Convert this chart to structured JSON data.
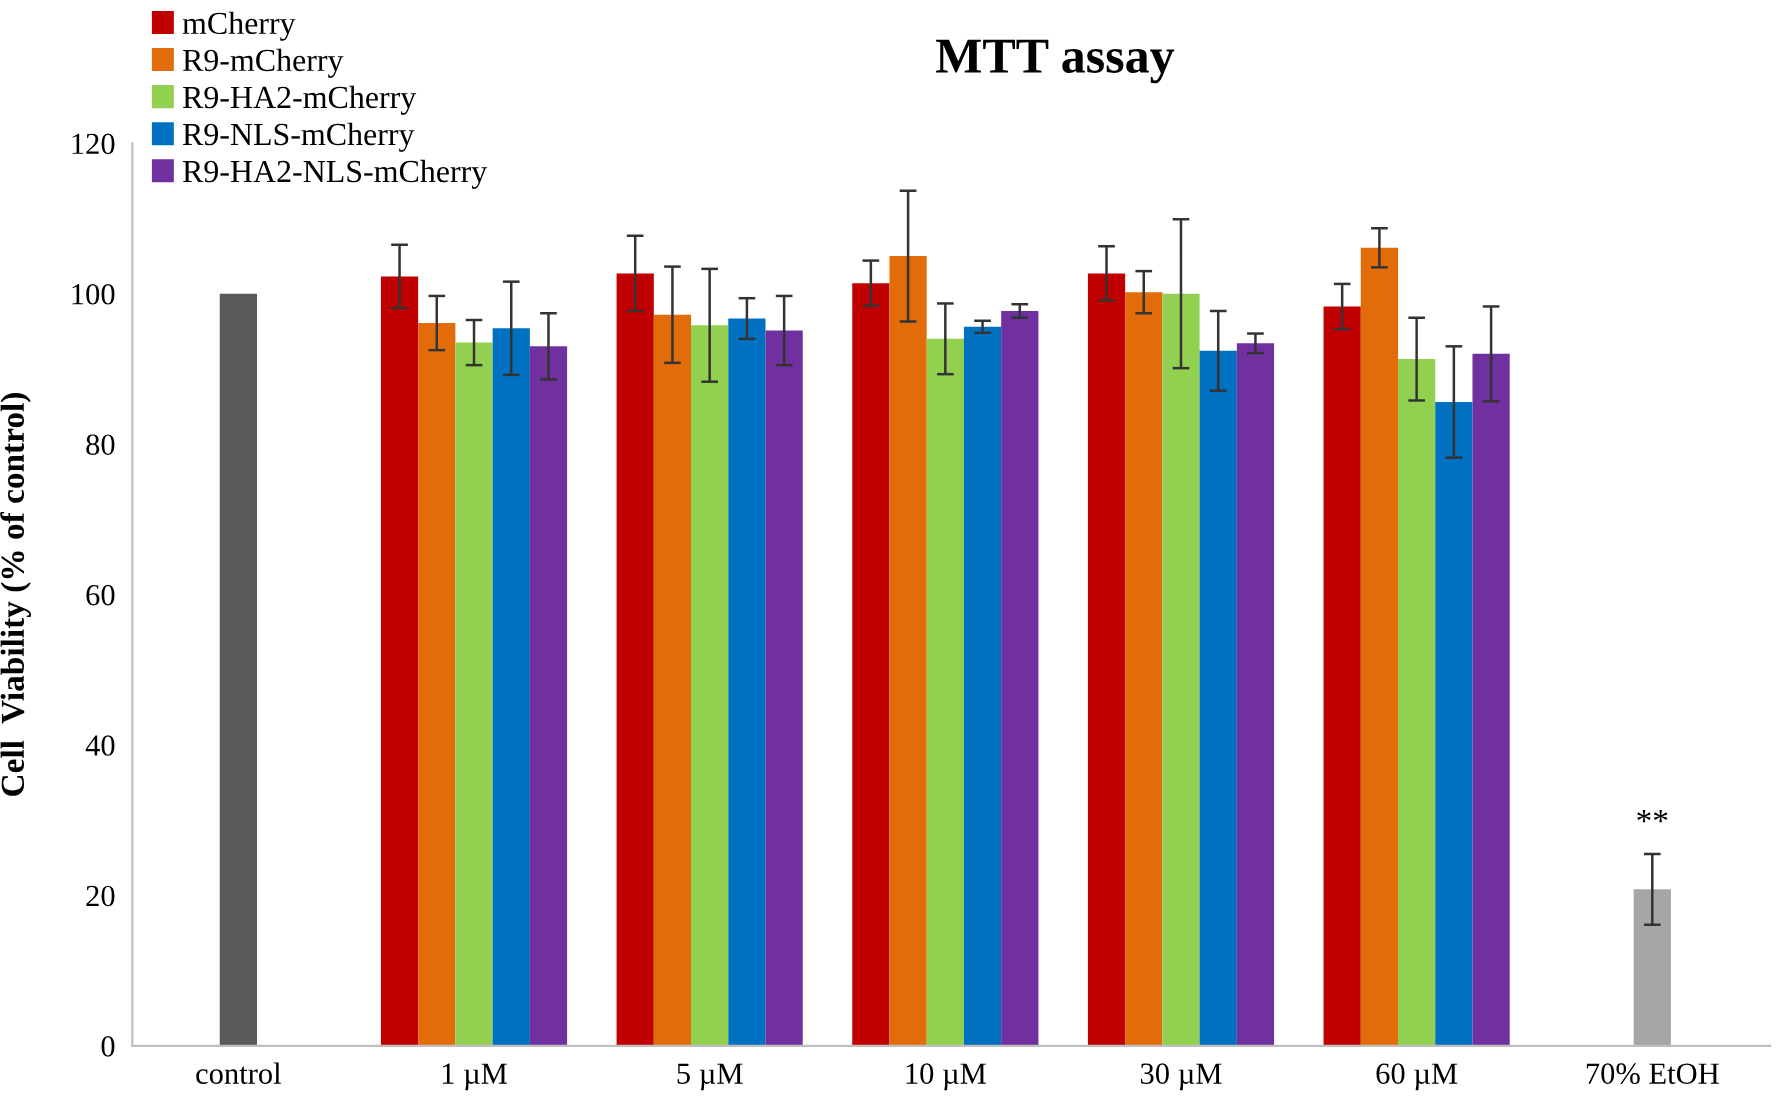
{
  "chart_data": {
    "type": "bar",
    "title": "MTT assay",
    "ylabel": "Cell  Viability (% of control)",
    "categories": [
      "control",
      "1 µM",
      "5 µM",
      "10 µM",
      "30 µM",
      "60 µM",
      "70% EtOH"
    ],
    "series": [
      {
        "color": "#595959",
        "values": [
          100,
          null,
          null,
          null,
          null,
          null,
          null
        ]
      },
      {
        "name": "mCherry",
        "color": "#c00000",
        "values": [
          null,
          102.3,
          102.7,
          101.4,
          102.7,
          98.3,
          null
        ],
        "errors": [
          null,
          4.2,
          5,
          3,
          3.6,
          3,
          null
        ]
      },
      {
        "name": "R9-mCherry",
        "color": "#e36c0a",
        "values": [
          null,
          96.1,
          97.2,
          105,
          100.2,
          106.1,
          null
        ],
        "errors": [
          null,
          3.6,
          6.4,
          8.7,
          2.8,
          2.6,
          null
        ]
      },
      {
        "name": "R9-HA2-mCherry",
        "color": "#92d050",
        "values": [
          null,
          93.5,
          95.8,
          94,
          100,
          91.3,
          null
        ],
        "errors": [
          null,
          3,
          7.5,
          4.7,
          9.9,
          5.5,
          null
        ]
      },
      {
        "name": "R9-NLS-mCherry",
        "color": "#0070c0",
        "values": [
          null,
          95.4,
          96.7,
          95.6,
          92.4,
          85.6,
          null
        ],
        "errors": [
          null,
          6.2,
          2.7,
          0.8,
          5.3,
          7.4,
          null
        ]
      },
      {
        "name": "R9-HA2-NLS-mCherry",
        "color": "#7030a0",
        "values": [
          null,
          93,
          95.1,
          97.7,
          93.4,
          92,
          null
        ],
        "errors": [
          null,
          4.4,
          4.6,
          0.9,
          1.3,
          6.3,
          null
        ]
      },
      {
        "color": "#a6a6a6",
        "values": [
          null,
          null,
          null,
          null,
          null,
          null,
          20.8
        ],
        "errors": [
          null,
          null,
          null,
          null,
          null,
          null,
          4.7
        ]
      }
    ],
    "annotations": [
      "**"
    ],
    "ylim": [
      0,
      120
    ],
    "yticks": [
      0,
      20,
      40,
      60,
      80,
      100,
      120
    ],
    "grid": false,
    "legend": "top left"
  }
}
